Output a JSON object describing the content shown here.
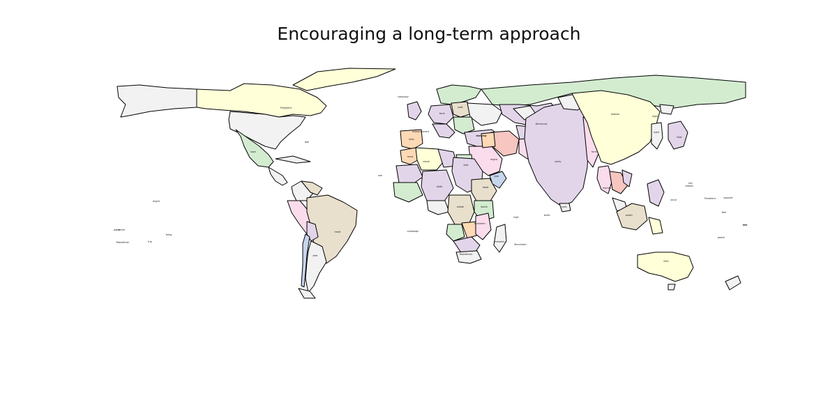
{
  "title": "Encouraging a long-term approach",
  "palette": {
    "green": "#d3ecd0",
    "yellow": "#ffffd8",
    "gray": "#f2f2f2",
    "lilac": "#e2d5e9",
    "tan": "#e8dfcc",
    "pink": "#fbdcec",
    "orange": "#fdd9b5",
    "blue": "#c6d6ec",
    "salmon": "#f7c6c0",
    "outline": "#000000"
  },
  "chart_data": {
    "type": "choropleth",
    "title": "Encouraging a long-term approach",
    "regions": [
      {
        "name": "Russia",
        "color": "green",
        "label": ""
      },
      {
        "name": "China",
        "color": "yellow",
        "label": "mother"
      },
      {
        "name": "India",
        "color": "lilac",
        "label": "party"
      },
      {
        "name": "Canada",
        "color": "yellow",
        "label": "President"
      },
      {
        "name": "USA",
        "color": "gray",
        "label": "year"
      },
      {
        "name": "Mexico",
        "color": "green",
        "label": "soon"
      },
      {
        "name": "Brazil",
        "color": "tan",
        "label": "heart"
      },
      {
        "name": "Australia",
        "color": "yellow",
        "label": "face"
      },
      {
        "name": "Indonesia",
        "color": "tan",
        "label": "public"
      },
      {
        "name": "Korea",
        "color": "lilac",
        "label": "East"
      },
      {
        "name": "Japan",
        "color": "gray",
        "label": "right"
      },
      {
        "name": "Sudan",
        "color": "lilac",
        "label": "side"
      },
      {
        "name": "Chad",
        "color": "lilac",
        "label": "state"
      },
      {
        "name": "Ethiopia",
        "color": "tan",
        "label": "head"
      },
      {
        "name": "DR Congo",
        "color": "tan",
        "label": "whole"
      },
      {
        "name": "South Africa",
        "color": "gray",
        "label": "Republican"
      },
      {
        "name": "Tanzania",
        "color": "green",
        "label": "South"
      },
      {
        "name": "Mozambique",
        "color": "pink",
        "label": "economic"
      },
      {
        "name": "Saudi Arabia",
        "color": "pink",
        "label": "company"
      },
      {
        "name": "Algeria",
        "color": "yellow",
        "label": "result"
      },
      {
        "name": "Mali",
        "color": "lilac",
        "label": "must"
      },
      {
        "name": "Morocco",
        "color": "orange",
        "label": ""
      },
      {
        "name": "Spain",
        "color": "orange",
        "label": "idea"
      },
      {
        "name": "France",
        "color": "lilac",
        "label": "form"
      },
      {
        "name": "Germany",
        "color": "tan",
        "label": "past"
      },
      {
        "name": "Turkey",
        "color": "lilac",
        "label": "morning"
      },
      {
        "name": "Iran",
        "color": "salmon",
        "label": ""
      },
      {
        "name": "Pakistan",
        "color": "pink",
        "label": "Democrat"
      },
      {
        "name": "Myanmar",
        "color": "pink",
        "label": "form"
      },
      {
        "name": "Thailand",
        "color": "salmon",
        "label": "market"
      },
      {
        "name": "Vietnam",
        "color": "lilac",
        "label": ""
      },
      {
        "name": "Philippines",
        "color": "lilac",
        "label": ""
      },
      {
        "name": "Peru",
        "color": "pink",
        "label": ""
      },
      {
        "name": "Chile",
        "color": "blue",
        "label": ""
      },
      {
        "name": "Argentina",
        "color": "gray",
        "label": "cold"
      },
      {
        "name": "Colombia",
        "color": "gray",
        "label": ""
      },
      {
        "name": "Somalia",
        "color": "blue",
        "label": "year"
      },
      {
        "name": "Kenya",
        "color": "gray",
        "label": "might"
      },
      {
        "name": "Madagascar",
        "color": "gray",
        "label": "economic"
      },
      {
        "name": "Angola",
        "color": "green",
        "label": ""
      },
      {
        "name": "Sri Lanka",
        "color": "gray",
        "label": "seek"
      },
      {
        "name": "UK",
        "color": "lilac",
        "label": ""
      },
      {
        "name": "Scandinavia",
        "color": "green",
        "label": ""
      },
      {
        "name": "Kazakhstan",
        "color": "lilac",
        "label": ""
      },
      {
        "name": "Greenland",
        "color": "yellow",
        "label": ""
      }
    ],
    "other_labels": [
      "ball",
      "high",
      "might",
      "company",
      "establishment",
      "arrive",
      "support",
      "sea",
      "Republican",
      "kid",
      "trip",
      "bring",
      "campaign",
      "President",
      "occur",
      "feel",
      "peace",
      "reason",
      "build",
      "key",
      "discussion",
      "right",
      "paper",
      "tree"
    ]
  }
}
